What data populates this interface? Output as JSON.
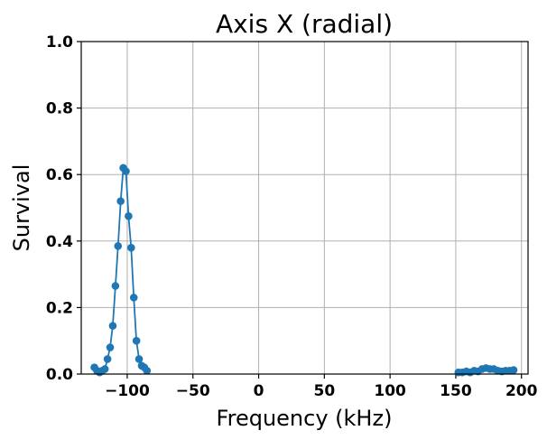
{
  "chart_data": {
    "type": "line",
    "title": "Axis X (radial)",
    "xlabel": "Frequency (kHz)",
    "ylabel": "Survival",
    "xlim": [
      -135,
      205
    ],
    "ylim": [
      0,
      1.0
    ],
    "xticks": [
      -100,
      -50,
      0,
      50,
      100,
      150,
      200
    ],
    "xtick_labels": [
      "−100",
      "−50",
      "0",
      "50",
      "100",
      "150",
      "200"
    ],
    "yticks": [
      0,
      0.2,
      0.4,
      0.6,
      0.8,
      1.0
    ],
    "ytick_labels": [
      "0.0",
      "0.2",
      "0.4",
      "0.6",
      "0.8",
      "1.0"
    ],
    "grid": true,
    "series_color": "#1f77b4",
    "series": [
      {
        "x": [
          -125,
          -123,
          -121,
          -119,
          -117,
          -115,
          -113,
          -111,
          -109,
          -107,
          -105,
          -103,
          -101,
          -99,
          -97,
          -95,
          -93,
          -91,
          -89,
          -87,
          -85
        ],
        "y": [
          0.02,
          0.01,
          0.005,
          0.01,
          0.015,
          0.045,
          0.08,
          0.145,
          0.265,
          0.385,
          0.52,
          0.62,
          0.61,
          0.475,
          0.38,
          0.23,
          0.1,
          0.045,
          0.025,
          0.02,
          0.01
        ]
      },
      {
        "x": [
          152,
          155,
          158,
          161,
          164,
          167,
          170,
          173,
          176,
          179,
          182,
          185,
          188,
          191,
          194
        ],
        "y": [
          0.005,
          0.005,
          0.008,
          0.005,
          0.01,
          0.008,
          0.015,
          0.018,
          0.015,
          0.015,
          0.01,
          0.008,
          0.01,
          0.01,
          0.012
        ]
      }
    ]
  }
}
